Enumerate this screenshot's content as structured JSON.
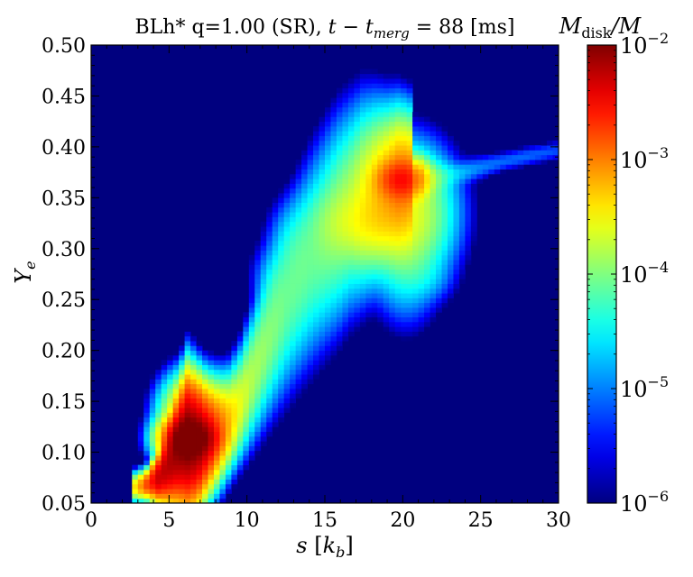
{
  "figure": {
    "title_prefix": "BLh* q=1.00 (SR), ",
    "title_math_t": "t",
    "title_math_minus": " − ",
    "title_math_tm": "t",
    "title_math_sub": "merg",
    "title_math_eq": " = 88 [ms]",
    "xlabel_var": "s",
    "xlabel_unit_open": " [",
    "xlabel_unit_k": "k",
    "xlabel_unit_sub": "b",
    "xlabel_unit_close": "]",
    "ylabel_var": "Y",
    "ylabel_sub": "e",
    "colorbar_label_M": "M",
    "colorbar_label_sub": "disk",
    "colorbar_label_rest": "/M"
  },
  "chart_data": {
    "type": "heatmap",
    "title": "BLh* q=1.00 (SR), t − t_merg = 88 [ms]",
    "xlabel": "s [k_b]",
    "ylabel": "Y_e",
    "xlim": [
      0,
      30
    ],
    "ylim": [
      0.05,
      0.5
    ],
    "xticks": [
      "0",
      "5",
      "10",
      "15",
      "20",
      "25",
      "30"
    ],
    "xtick_values": [
      0,
      5,
      10,
      15,
      20,
      25,
      30
    ],
    "yticks": [
      "0.05",
      "0.10",
      "0.15",
      "0.20",
      "0.25",
      "0.30",
      "0.35",
      "0.40",
      "0.45",
      "0.50"
    ],
    "ytick_values": [
      0.05,
      0.1,
      0.15,
      0.2,
      0.25,
      0.3,
      0.35,
      0.4,
      0.45,
      0.5
    ],
    "colorbar": {
      "label": "M_disk/M",
      "scale": "log",
      "range": [
        1e-06,
        0.01
      ],
      "colormap": "jet",
      "background_color": "#00007f",
      "ticks": [
        {
          "base": "10",
          "exp": "−2",
          "value": -2
        },
        {
          "base": "10",
          "exp": "−3",
          "value": -3
        },
        {
          "base": "10",
          "exp": "−4",
          "value": -4
        },
        {
          "base": "10",
          "exp": "−5",
          "value": -5
        },
        {
          "base": "10",
          "exp": "−6",
          "value": -6
        }
      ]
    },
    "features_note_free": null,
    "ridges": [
      {
        "s": [
          2.8,
          3.5,
          4.3,
          5.0,
          5.6,
          6.2,
          6.8,
          7.5,
          8.2,
          8.9,
          9.6,
          10.3,
          11.0,
          11.8,
          12.6,
          13.4,
          14.2,
          15.0,
          15.8,
          16.6,
          17.4,
          18.2,
          19.0,
          19.8,
          20.6
        ],
        "Ye": [
          0.066,
          0.068,
          0.075,
          0.088,
          0.102,
          0.11,
          0.108,
          0.11,
          0.118,
          0.13,
          0.148,
          0.172,
          0.198,
          0.225,
          0.25,
          0.272,
          0.292,
          0.31,
          0.326,
          0.34,
          0.35,
          0.358,
          0.364,
          0.368,
          0.37
        ],
        "log10_mass": [
          -3.4,
          -2.8,
          -2.3,
          -2.2,
          -2.1,
          -2.0,
          -2.1,
          -2.4,
          -2.9,
          -3.3,
          -3.6,
          -3.8,
          -3.9,
          -4.0,
          -4.1,
          -4.1,
          -4.1,
          -4.0,
          -3.9,
          -3.8,
          -3.6,
          -3.4,
          -3.2,
          -3.0,
          -3.1
        ],
        "width_Ye": [
          0.006,
          0.006,
          0.01,
          0.016,
          0.022,
          0.026,
          0.024,
          0.02,
          0.02,
          0.02,
          0.022,
          0.026,
          0.03,
          0.034,
          0.038,
          0.04,
          0.042,
          0.042,
          0.042,
          0.04,
          0.038,
          0.034,
          0.03,
          0.028,
          0.026
        ]
      },
      {
        "s": [
          21.0,
          22.0,
          23.5,
          25.0,
          26.5,
          28.0,
          30.0
        ],
        "Ye": [
          0.37,
          0.37,
          0.374,
          0.38,
          0.386,
          0.391,
          0.397
        ],
        "log10_mass": [
          -3.6,
          -4.3,
          -4.8,
          -5.0,
          -5.1,
          -5.1,
          -5.2
        ],
        "width_Ye": [
          0.01,
          0.008,
          0.006,
          0.006,
          0.005,
          0.005,
          0.005
        ]
      }
    ],
    "blobs": [
      {
        "s": 19.9,
        "Ye": 0.368,
        "log10_mass": -2.7,
        "sigma_s": 0.8,
        "sigma_Ye": 0.01
      },
      {
        "s": 20.2,
        "Ye": 0.335,
        "log10_mass": -3.6,
        "sigma_s": 1.4,
        "sigma_Ye": 0.03
      },
      {
        "s": 17.5,
        "Ye": 0.325,
        "log10_mass": -3.9,
        "sigma_s": 1.6,
        "sigma_Ye": 0.018
      },
      {
        "s": 20.2,
        "Ye": 0.29,
        "log10_mass": -4.5,
        "sigma_s": 1.0,
        "sigma_Ye": 0.03
      },
      {
        "s": 21.5,
        "Ye": 0.272,
        "log10_mass": -5.0,
        "sigma_s": 0.9,
        "sigma_Ye": 0.012
      },
      {
        "s": 6.4,
        "Ye": 0.114,
        "log10_mass": -2.0,
        "sigma_s": 0.8,
        "sigma_Ye": 0.01
      },
      {
        "s": 6.6,
        "Ye": 0.135,
        "log10_mass": -3.0,
        "sigma_s": 0.9,
        "sigma_Ye": 0.018
      },
      {
        "s": 12.8,
        "Ye": 0.305,
        "log10_mass": -4.8,
        "sigma_s": 0.8,
        "sigma_Ye": 0.022
      },
      {
        "s": 11.6,
        "Ye": 0.27,
        "log10_mass": -4.9,
        "sigma_s": 0.7,
        "sigma_Ye": 0.018
      }
    ]
  }
}
